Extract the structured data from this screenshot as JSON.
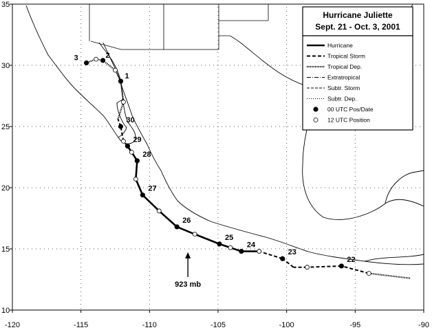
{
  "title": {
    "line1": "Hurricane Juliette",
    "line2": "Sept. 21 - Oct. 3, 2001"
  },
  "legend": {
    "items": [
      {
        "label": "Hurricane",
        "style": "hurricane"
      },
      {
        "label": "Tropical Storm",
        "style": "tropical-storm"
      },
      {
        "label": "Tropical Dep.",
        "style": "tropical-dep"
      },
      {
        "label": "Extratropical",
        "style": "extratropical"
      },
      {
        "label": "Subtr. Storm",
        "style": "subtr-storm"
      },
      {
        "label": "Subtr. Dep.",
        "style": "subtr-dep"
      },
      {
        "label": "00 UTC Pos/Date",
        "style": "marker-00"
      },
      {
        "label": "12 UTC Position",
        "style": "marker-12"
      }
    ]
  },
  "annotation": {
    "text": "923 mb",
    "lon": -107.2,
    "lat": 15.4
  },
  "axes": {
    "x_ticks": [
      "-120",
      "-115",
      "-110",
      "-105",
      "-100",
      "-95",
      "-90"
    ],
    "y_ticks": [
      "35",
      "30",
      "25",
      "20",
      "15",
      "10"
    ],
    "lon_range": [
      -120,
      -90
    ],
    "lat_range": [
      10,
      35
    ]
  },
  "chart_data": {
    "type": "scatter",
    "x_range": [
      -120,
      -90
    ],
    "y_range": [
      10,
      35
    ],
    "track": [
      {
        "lon": -91.0,
        "lat": 12.6,
        "stage": "tropical-dep"
      },
      {
        "lon": -94.0,
        "lat": 13.0,
        "stage": "tropical-dep",
        "utc12": true
      },
      {
        "lon": -96.0,
        "lat": 13.6,
        "stage": "tropical-storm",
        "utc00": true,
        "date": "22"
      },
      {
        "lon": -98.5,
        "lat": 13.5,
        "stage": "tropical-storm",
        "utc12": true
      },
      {
        "lon": -99.5,
        "lat": 13.5,
        "stage": "tropical-storm"
      },
      {
        "lon": -100.3,
        "lat": 14.2,
        "stage": "tropical-storm",
        "utc00": true,
        "date": "23"
      },
      {
        "lon": -102.0,
        "lat": 14.8,
        "stage": "tropical-storm",
        "utc12": true
      },
      {
        "lon": -103.3,
        "lat": 14.8,
        "stage": "hurricane",
        "utc00": true,
        "date": "24"
      },
      {
        "lon": -104.1,
        "lat": 15.1,
        "stage": "hurricane",
        "utc12": true
      },
      {
        "lon": -104.9,
        "lat": 15.4,
        "stage": "hurricane",
        "utc00": true,
        "date": "25"
      },
      {
        "lon": -106.7,
        "lat": 16.2,
        "stage": "hurricane",
        "utc12": true
      },
      {
        "lon": -108.0,
        "lat": 16.8,
        "stage": "hurricane",
        "utc00": true,
        "date": "26"
      },
      {
        "lon": -109.3,
        "lat": 18.1,
        "stage": "hurricane",
        "utc12": true
      },
      {
        "lon": -110.5,
        "lat": 19.4,
        "stage": "hurricane",
        "utc00": true,
        "date": "27"
      },
      {
        "lon": -111.0,
        "lat": 20.7,
        "stage": "hurricane",
        "utc12": true
      },
      {
        "lon": -110.9,
        "lat": 22.2,
        "stage": "hurricane",
        "utc00": true,
        "date": "28"
      },
      {
        "lon": -111.3,
        "lat": 22.9,
        "stage": "hurricane",
        "utc12": true
      },
      {
        "lon": -111.6,
        "lat": 23.4,
        "stage": "hurricane",
        "utc00": true,
        "date": "29"
      },
      {
        "lon": -111.9,
        "lat": 23.8,
        "stage": "tropical-storm",
        "utc12": true
      },
      {
        "lon": -112.1,
        "lat": 25.0,
        "stage": "tropical-storm",
        "utc00": true,
        "date": "30"
      },
      {
        "lon": -112.3,
        "lat": 25.6,
        "stage": "tropical-storm"
      },
      {
        "lon": -111.9,
        "lat": 27.0,
        "stage": "tropical-dep",
        "utc12": true
      },
      {
        "lon": -112.1,
        "lat": 28.7,
        "stage": "tropical-dep",
        "utc00": true,
        "date": "1"
      },
      {
        "lon": -112.5,
        "lat": 29.6,
        "stage": "tropical-dep",
        "utc12": true
      },
      {
        "lon": -113.4,
        "lat": 30.4,
        "stage": "tropical-dep",
        "utc00": true,
        "date": "2"
      },
      {
        "lon": -113.9,
        "lat": 30.5,
        "stage": "tropical-dep",
        "utc12": true
      },
      {
        "lon": -114.6,
        "lat": 30.2,
        "stage": "tropical-dep",
        "utc00": true,
        "date": "3"
      }
    ]
  }
}
